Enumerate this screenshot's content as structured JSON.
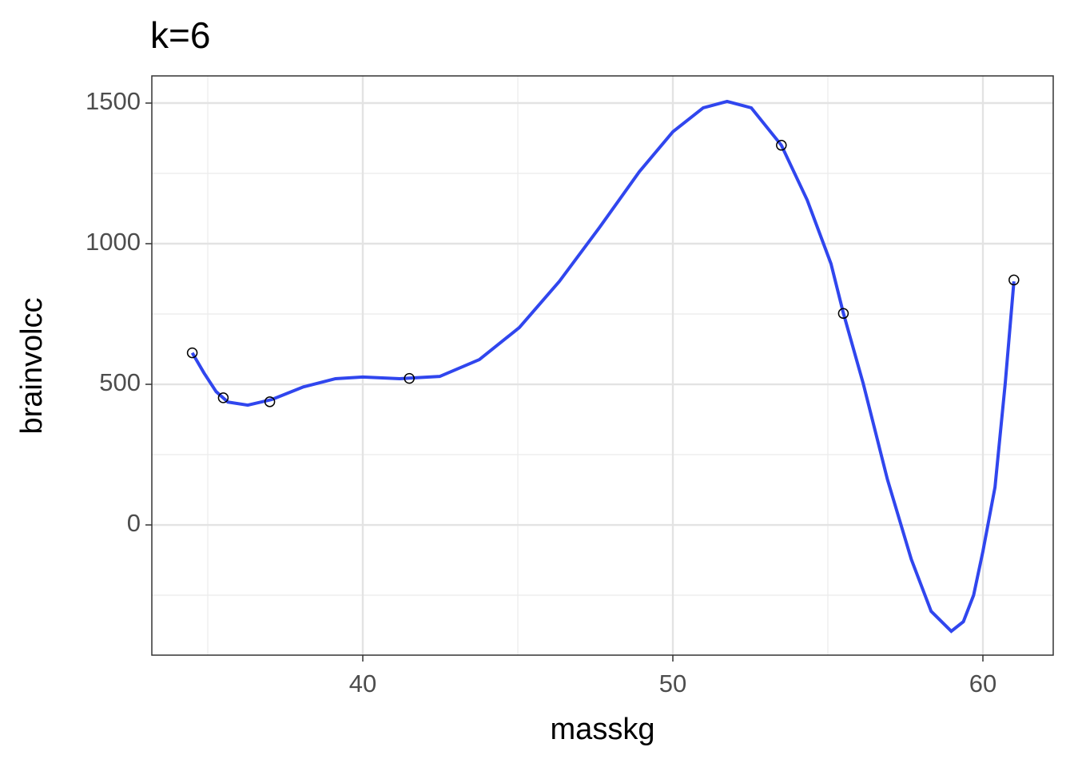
{
  "chart_data": {
    "type": "scatter",
    "title": "k=6",
    "x_label": "masskg",
    "y_label": "brainvolcc",
    "xlim": [
      33.196,
      62.268
    ],
    "ylim": [
      -463,
      1596.6
    ],
    "xticks": [
      40,
      50,
      60
    ],
    "yticks": [
      0,
      500,
      1000,
      1500
    ],
    "x_minor_grid": [
      35,
      45,
      55
    ],
    "y_minor_grid": [
      -250,
      250,
      750,
      1250
    ],
    "grid": true,
    "series": [
      {
        "name": "points",
        "type": "scatter",
        "color": "#000000",
        "x": [
          37.0,
          35.5,
          34.5,
          41.5,
          55.5,
          61.0,
          53.5
        ],
        "values": [
          438,
          452,
          612,
          521,
          752,
          871,
          1350
        ]
      },
      {
        "name": "fit",
        "type": "line",
        "color": "#3046ee",
        "x": [
          34.5,
          34.88,
          35.27,
          35.65,
          36.29,
          37.07,
          38.09,
          39.12,
          40,
          41.19,
          42.48,
          43.76,
          45.05,
          46.34,
          47.63,
          48.92,
          50,
          50.98,
          51.75,
          52.53,
          53.5,
          54.33,
          55.1,
          55.5,
          56.14,
          56.92,
          57.69,
          58.33,
          58.98,
          59.37,
          59.7,
          60,
          60.39,
          60.72,
          61
        ],
        "values": [
          612,
          540,
          474,
          437,
          426,
          446,
          491,
          520,
          526,
          520,
          528,
          588,
          702,
          866,
          1057,
          1256,
          1398,
          1483,
          1506,
          1483,
          1350,
          1156,
          929,
          753,
          503,
          162,
          -122,
          -307,
          -378,
          -344,
          -250,
          -94,
          134,
          503,
          866
        ]
      }
    ]
  }
}
